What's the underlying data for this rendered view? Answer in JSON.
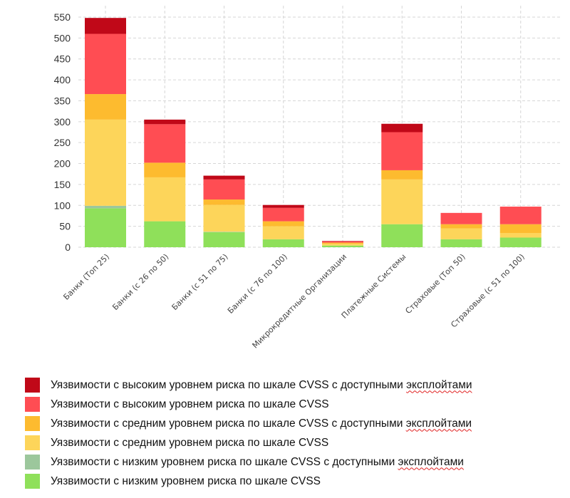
{
  "chart_data": {
    "type": "bar",
    "stacked": true,
    "title": "",
    "xlabel": "",
    "ylabel": "",
    "ylim": [
      0,
      550
    ],
    "yticks": [
      0,
      50,
      100,
      150,
      200,
      250,
      300,
      350,
      400,
      450,
      500,
      550
    ],
    "grid": true,
    "legend_position": "bottom",
    "categories": [
      "Банки (Топ 25)",
      "Банки (с 26 по 50)",
      "Банки (с 51 по 75)",
      "Банки (с 76 по 100)",
      "Микрокредитные Организации",
      "Платежные Системы",
      "Страховые (Топ 50)",
      "Страховые (с 51 по 100)"
    ],
    "series": [
      {
        "name": "Уязвимости с низким уровнем риска по шкале CVSS",
        "color": "#8fe05a",
        "values": [
          93,
          62,
          36,
          19,
          4,
          55,
          19,
          23
        ]
      },
      {
        "name": "Уязвимости с низким уровнем риска по шкале CVSS с доступными эксплойтами",
        "color": "#9cc79c",
        "values": [
          6,
          0,
          1,
          0,
          0,
          0,
          0,
          0
        ]
      },
      {
        "name": "Уязвимости с средним уровнем риска по шкале CVSS",
        "color": "#fdd55a",
        "values": [
          206,
          105,
          64,
          31,
          4,
          107,
          26,
          11
        ]
      },
      {
        "name": "Уязвимости с средним уровнем риска по шкале CVSS с доступными эксплойтами",
        "color": "#fdbb2f",
        "values": [
          61,
          35,
          13,
          12,
          3,
          22,
          10,
          21
        ]
      },
      {
        "name": "Уязвимости с высоким уровнем риска по шкале CVSS",
        "color": "#ff4d53",
        "values": [
          144,
          92,
          48,
          32,
          3,
          91,
          27,
          42
        ]
      },
      {
        "name": "Уязвимости с высоким уровнем риска по шкале CVSS с доступными эксплойтами",
        "color": "#c00818",
        "values": [
          38,
          11,
          9,
          7,
          1,
          20,
          0,
          0
        ]
      }
    ]
  },
  "legend": {
    "items": [
      {
        "prefix": "Уязвимости с высоким уровнем риска по шкале CVSS с доступными ",
        "marked": "эксплойтами",
        "color": "#c00818"
      },
      {
        "prefix": "Уязвимости с высоким уровнем риска по шкале CVSS",
        "marked": "",
        "color": "#ff4d53"
      },
      {
        "prefix": "Уязвимости с средним уровнем риска по шкале CVSS с доступными ",
        "marked": "эксплойтами",
        "color": "#fdbb2f"
      },
      {
        "prefix": "Уязвимости с средним уровнем риска по шкале CVSS",
        "marked": "",
        "color": "#fdd55a"
      },
      {
        "prefix": "Уязвимости с низким уровнем риска по шкале CVSS с доступными ",
        "marked": "эксплойтами",
        "color": "#9cc79c"
      },
      {
        "prefix": "Уязвимости с низким уровнем риска по шкале CVSS",
        "marked": "",
        "color": "#8fe05a"
      }
    ]
  }
}
